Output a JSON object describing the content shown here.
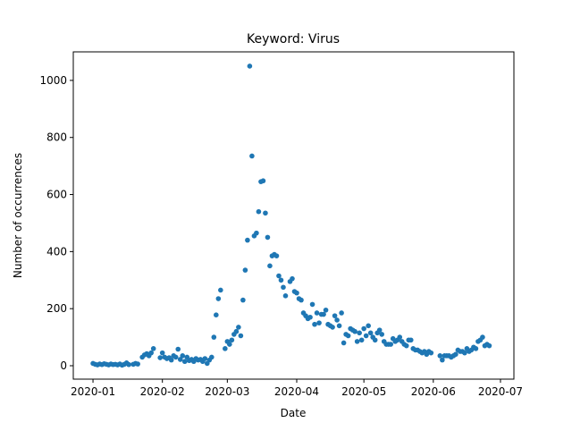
{
  "chart_data": {
    "type": "scatter",
    "title": "Keyword: Virus",
    "x_label": "Date",
    "y_label": "Number of occurrences",
    "color": "#1f77b4",
    "x": [
      0,
      1,
      2,
      3,
      4,
      5,
      6,
      7,
      8,
      9,
      10,
      11,
      12,
      13,
      14,
      15,
      16,
      18,
      19,
      20,
      22,
      23,
      24,
      25,
      26,
      27,
      30,
      31,
      32,
      33,
      34,
      35,
      36,
      37,
      38,
      39,
      40,
      41,
      42,
      43,
      44,
      45,
      46,
      47,
      48,
      49,
      50,
      51,
      52,
      53,
      54,
      55,
      56,
      57,
      59,
      60,
      61,
      62,
      63,
      64,
      65,
      66,
      67,
      68,
      69,
      70,
      71,
      72,
      73,
      74,
      75,
      76,
      77,
      78,
      79,
      80,
      81,
      82,
      83,
      84,
      85,
      86,
      88,
      89,
      90,
      91,
      92,
      93,
      94,
      95,
      96,
      97,
      98,
      99,
      100,
      101,
      102,
      103,
      104,
      105,
      106,
      107,
      108,
      109,
      110,
      111,
      112,
      113,
      114,
      115,
      116,
      117,
      118,
      119,
      120,
      121,
      122,
      123,
      124,
      125,
      126,
      127,
      128,
      129,
      130,
      131,
      132,
      133,
      134,
      135,
      136,
      137,
      138,
      139,
      140,
      141,
      142,
      143,
      144,
      145,
      146,
      147,
      148,
      149,
      150,
      151,
      155,
      156,
      157,
      158,
      159,
      160,
      161,
      162,
      163,
      164,
      165,
      166,
      167,
      168,
      169,
      170,
      171,
      172,
      173,
      174,
      175,
      176,
      177
    ],
    "values": [
      8,
      5,
      3,
      6,
      4,
      7,
      5,
      3,
      6,
      4,
      5,
      3,
      6,
      2,
      5,
      10,
      4,
      5,
      8,
      6,
      30,
      38,
      42,
      35,
      45,
      60,
      28,
      45,
      30,
      25,
      28,
      20,
      35,
      30,
      58,
      22,
      35,
      15,
      30,
      18,
      22,
      15,
      25,
      20,
      22,
      15,
      25,
      8,
      20,
      30,
      100,
      178,
      235,
      265,
      60,
      85,
      75,
      90,
      110,
      120,
      135,
      105,
      230,
      335,
      440,
      1050,
      735,
      455,
      465,
      540,
      645,
      648,
      535,
      450,
      350,
      385,
      390,
      385,
      315,
      300,
      275,
      245,
      295,
      305,
      260,
      255,
      235,
      230,
      185,
      175,
      165,
      170,
      215,
      145,
      185,
      150,
      180,
      180,
      195,
      145,
      140,
      135,
      175,
      160,
      140,
      185,
      80,
      110,
      105,
      130,
      125,
      120,
      85,
      115,
      90,
      130,
      105,
      140,
      115,
      100,
      90,
      115,
      125,
      110,
      85,
      75,
      75,
      75,
      95,
      85,
      90,
      100,
      85,
      75,
      70,
      90,
      90,
      60,
      55,
      55,
      50,
      45,
      50,
      40,
      50,
      45,
      35,
      20,
      35,
      35,
      35,
      30,
      35,
      40,
      55,
      50,
      50,
      45,
      60,
      50,
      55,
      65,
      60,
      85,
      90,
      100,
      70,
      75,
      70
    ],
    "xlim": [
      -8.8,
      188
    ],
    "ylim": [
      -47,
      1100
    ],
    "xticks": [
      {
        "value": 0,
        "label": "2020-01"
      },
      {
        "value": 31,
        "label": "2020-02"
      },
      {
        "value": 60,
        "label": "2020-03"
      },
      {
        "value": 91,
        "label": "2020-04"
      },
      {
        "value": 121,
        "label": "2020-05"
      },
      {
        "value": 152,
        "label": "2020-06"
      },
      {
        "value": 182,
        "label": "2020-07"
      }
    ],
    "yticks": [
      0,
      200,
      400,
      600,
      800,
      1000
    ]
  }
}
